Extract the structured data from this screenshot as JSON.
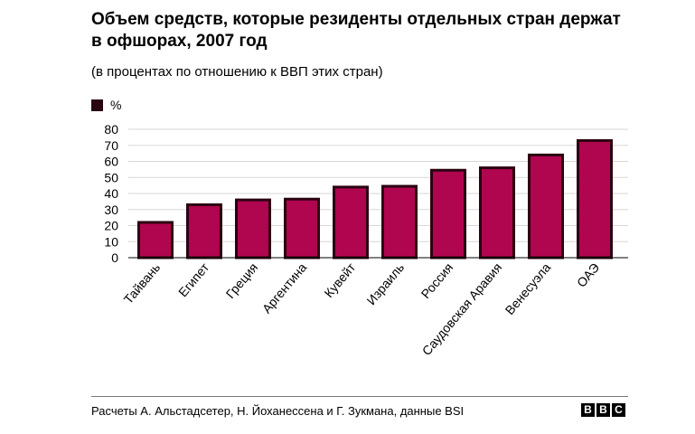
{
  "header": {
    "title": "Объем средств, которые резиденты отдельных стран держат в офшорах, 2007 год",
    "subtitle": "(в процентах по отношению к ВВП этих стран)"
  },
  "legend": {
    "label": "%"
  },
  "footer": {
    "source": "Расчеты А. Альстадсетер, Н. Йоханессена и Г. Зукмана, данные BSI",
    "logo": [
      "B",
      "B",
      "C"
    ]
  },
  "colors": {
    "bar_fill": "#b0054f",
    "bar_border": "#2a0210",
    "grid": "#d7d7d7"
  },
  "chart_data": {
    "type": "bar",
    "title": "Объем средств, которые резиденты отдельных стран держат в офшорах, 2007 год",
    "subtitle": "(в процентах по отношению к ВВП этих стран)",
    "xlabel": "",
    "ylabel": "%",
    "ylim": [
      0,
      80
    ],
    "yticks": [
      0,
      10,
      20,
      30,
      40,
      50,
      60,
      70,
      80
    ],
    "grid": true,
    "legend_position": "top-left",
    "categories": [
      "Тайвань",
      "Египет",
      "Греция",
      "Аргентина",
      "Кувейт",
      "Израиль",
      "Россия",
      "Саудовская Аравия",
      "Венесуэла",
      "ОАЭ"
    ],
    "series": [
      {
        "name": "%",
        "values": [
          22,
          33,
          36,
          36.5,
          44,
          44.5,
          54.5,
          56,
          64,
          73
        ]
      }
    ]
  }
}
